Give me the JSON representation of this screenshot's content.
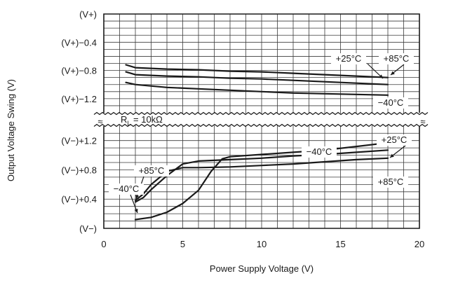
{
  "chart_data": {
    "type": "line",
    "title": "",
    "xlabel": "Power Supply Voltage (V)",
    "ylabel": "Output Voltage Swing (V)",
    "xlim": [
      0,
      20
    ],
    "x_ticks": [
      "0",
      "5",
      "10",
      "15",
      "20"
    ],
    "grid": true,
    "break_symbol": "≈",
    "condition_label": "R_L = 10kΩ",
    "condition": {
      "prefix": "R",
      "sub": "L",
      "suffix": " = 10kΩ"
    },
    "panels": [
      {
        "name": "upper",
        "y_ticks": [
          "(V+)",
          "(V+)−0.4",
          "(V+)−0.8",
          "(V+)−1.2"
        ],
        "y_tick_values": [
          0,
          -0.4,
          -0.8,
          -1.2
        ],
        "ylim": [
          -1.36,
          0
        ],
        "y_unit": "V relative to (V+)",
        "series": [
          {
            "name": "+85°C",
            "x": [
              1.4,
              2,
              4,
              6,
              8,
              10,
              12,
              14,
              16,
              18
            ],
            "y": [
              -0.72,
              -0.76,
              -0.78,
              -0.79,
              -0.81,
              -0.82,
              -0.84,
              -0.86,
              -0.88,
              -0.9
            ]
          },
          {
            "name": "+25°C",
            "x": [
              1.4,
              2,
              4,
              6,
              8,
              10,
              12,
              14,
              16,
              18
            ],
            "y": [
              -0.82,
              -0.86,
              -0.88,
              -0.89,
              -0.91,
              -0.92,
              -0.94,
              -0.96,
              -0.98,
              -1.0
            ]
          },
          {
            "name": "-40°C",
            "x": [
              1.4,
              2,
              4,
              6,
              8,
              10,
              12,
              14,
              16,
              18
            ],
            "y": [
              -0.97,
              -1.0,
              -1.04,
              -1.06,
              -1.08,
              -1.1,
              -1.12,
              -1.13,
              -1.14,
              -1.15
            ]
          }
        ],
        "annotations": [
          "+25°C",
          "+85°C",
          "−40°C"
        ]
      },
      {
        "name": "lower",
        "y_ticks": [
          "(V−)+1.2",
          "(V−)+0.8",
          "(V−)+0.4",
          "(V−)"
        ],
        "y_tick_values": [
          1.2,
          0.8,
          0.4,
          0
        ],
        "ylim": [
          0,
          1.36
        ],
        "y_unit": "V relative to (V−)",
        "series": [
          {
            "name": "-40°C",
            "x": [
              2,
              3,
              4,
              5,
              6,
              6.8,
              7.5,
              8,
              10,
              12,
              14,
              16,
              18
            ],
            "y": [
              0.12,
              0.15,
              0.22,
              0.34,
              0.52,
              0.78,
              0.95,
              0.98,
              1.01,
              1.04,
              1.07,
              1.12,
              1.17
            ]
          },
          {
            "name": "+25°C",
            "x": [
              2,
              2.5,
              3,
              4,
              5,
              6,
              8,
              10,
              12,
              14,
              16,
              18
            ],
            "y": [
              0.36,
              0.42,
              0.53,
              0.72,
              0.88,
              0.92,
              0.94,
              0.96,
              0.99,
              1.01,
              1.04,
              1.07
            ]
          },
          {
            "name": "+85°C",
            "x": [
              2,
              2.5,
              3,
              4,
              5,
              6,
              8,
              10,
              12,
              14,
              16,
              18
            ],
            "y": [
              0.38,
              0.47,
              0.6,
              0.78,
              0.83,
              0.83,
              0.84,
              0.86,
              0.88,
              0.91,
              0.94,
              0.96
            ]
          }
        ],
        "annotations": [
          "+85°C",
          "−40°C",
          "−40°C",
          "+25°C",
          "+85°C"
        ]
      }
    ]
  }
}
